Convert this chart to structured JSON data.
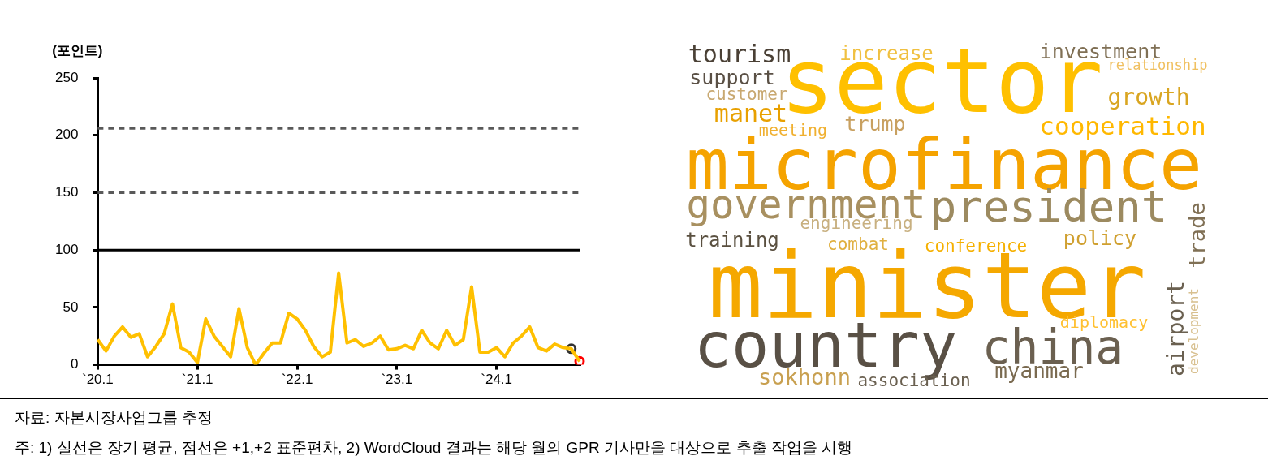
{
  "chart_data": [
    {
      "type": "line",
      "ylabel": "(포인트)",
      "categories": [
        "`20.1",
        null,
        null,
        null,
        null,
        null,
        null,
        null,
        null,
        null,
        null,
        null,
        "`21.1",
        null,
        null,
        null,
        null,
        null,
        null,
        null,
        null,
        null,
        null,
        null,
        "`22.1",
        null,
        null,
        null,
        null,
        null,
        null,
        null,
        null,
        null,
        null,
        null,
        "`23.1",
        null,
        null,
        null,
        null,
        null,
        null,
        null,
        null,
        null,
        null,
        null,
        "`24.1",
        null,
        null,
        null,
        null,
        null,
        null,
        null,
        null,
        null,
        null
      ],
      "series": [
        {
          "type": "line",
          "color": "#ffc000",
          "marker": "none",
          "values": [
            22,
            12,
            25,
            33,
            24,
            27,
            7,
            16,
            27,
            53,
            15,
            11,
            2,
            40,
            25,
            16,
            7,
            49,
            15,
            0,
            10,
            19,
            19,
            45,
            40,
            30,
            16,
            7,
            11,
            80,
            19,
            22,
            16,
            19,
            25,
            13,
            14,
            17,
            14,
            30,
            19,
            14,
            30,
            17,
            22,
            68,
            11,
            11,
            15,
            7,
            19,
            25,
            33,
            15,
            12,
            18,
            15,
            14,
            3
          ]
        },
        {
          "type": "scatter",
          "color": "#333333",
          "marker": "circle",
          "values": [
            null,
            null,
            null,
            null,
            null,
            null,
            null,
            null,
            null,
            null,
            null,
            null,
            null,
            null,
            null,
            null,
            null,
            null,
            null,
            null,
            null,
            null,
            null,
            null,
            null,
            null,
            null,
            null,
            null,
            null,
            null,
            null,
            null,
            null,
            null,
            null,
            null,
            null,
            null,
            null,
            null,
            null,
            null,
            null,
            null,
            null,
            null,
            null,
            null,
            null,
            null,
            null,
            null,
            null,
            null,
            null,
            null,
            14,
            null
          ]
        },
        {
          "type": "scatter",
          "color": "#ff0000",
          "marker": "circle",
          "values": [
            null,
            null,
            null,
            null,
            null,
            null,
            null,
            null,
            null,
            null,
            null,
            null,
            null,
            null,
            null,
            null,
            null,
            null,
            null,
            null,
            null,
            null,
            null,
            null,
            null,
            null,
            null,
            null,
            null,
            null,
            null,
            null,
            null,
            null,
            null,
            null,
            null,
            null,
            null,
            null,
            null,
            null,
            null,
            null,
            null,
            null,
            null,
            null,
            null,
            null,
            null,
            null,
            null,
            null,
            null,
            null,
            null,
            null,
            3
          ]
        }
      ],
      "ylim": [
        0,
        250
      ],
      "yticks": [
        0,
        50,
        100,
        150,
        200,
        250
      ],
      "ref_lines": [
        {
          "axis": "y",
          "value": 100,
          "color": "#000000",
          "line_style": "solid"
        },
        {
          "axis": "y",
          "value": 150,
          "color": "#595959",
          "line_style": "dashed"
        },
        {
          "axis": "y",
          "value": 206,
          "color": "#595959",
          "line_style": "dashed"
        }
      ],
      "annotations": [
        "자료: 자본시장사업그룹 추정",
        "주: 1) 실선은 장기 평균, 점선은 +1,+2 표준편차, 2) WordCloud 결과는 해당 월의 GPR 기사만을 대상으로 추출 작업을 시행"
      ]
    },
    {
      "type": "other",
      "annotations": [
        "sector",
        "microfinance",
        "minister",
        "country",
        "china",
        "government",
        "president",
        "tourism",
        "increase",
        "investment",
        "relationship",
        "support",
        "customer",
        "growth",
        "manet",
        "trump",
        "meeting",
        "cooperation",
        "engineering",
        "trade",
        "training",
        "combat",
        "conference",
        "policy",
        "airport",
        "development",
        "diplomacy",
        "sokhonn",
        "association",
        "myanmar"
      ],
      "colors": [
        "#ffc000",
        "#f5a300",
        "#f5a800",
        "#595045",
        "#6b6050",
        "#a89060",
        "#9c8a60",
        "#4a4035",
        "#f0c040",
        "#807055",
        "#f0c060",
        "#5a5045",
        "#c8a870",
        "#d9a520",
        "#e8a000",
        "#c8a060",
        "#f0b030",
        "#ffb800",
        "#c8b080",
        "#807055",
        "#5a5040",
        "#e0b040",
        "#f5b000",
        "#d0a030",
        "#6a6050",
        "#d8c090",
        "#ffc030",
        "#c8a050",
        "#6a6050",
        "#7a6a50"
      ]
    }
  ]
}
